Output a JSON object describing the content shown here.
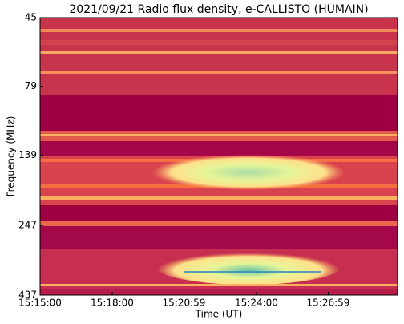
{
  "chart_data": {
    "type": "spectrogram",
    "title": "2021/09/21  Radio flux density, e-CALLISTO (HUMAIN)",
    "xlabel": "Time (UT)",
    "ylabel": "Frequency (MHz)",
    "xlim": [
      54900,
      55792
    ],
    "xticks": [
      {
        "value": 54900,
        "label": "15:15:00"
      },
      {
        "value": 55080,
        "label": "15:18:00"
      },
      {
        "value": 55259,
        "label": "15:20:59"
      },
      {
        "value": 55440,
        "label": "15:24:00"
      },
      {
        "value": 55619,
        "label": "15:26:59"
      }
    ],
    "ylim": [
      437,
      45
    ],
    "yscale": "log",
    "yticks": [
      45,
      79,
      139,
      247,
      437
    ]
  }
}
